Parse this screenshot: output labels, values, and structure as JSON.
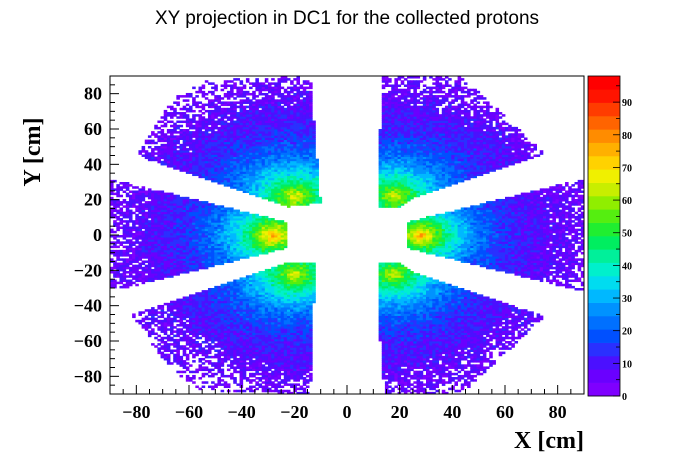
{
  "chart_data": {
    "type": "heatmap",
    "title": "XY projection in DC1 for the collected protons",
    "xlabel": "X [cm]",
    "ylabel": "Y [cm]",
    "xlim": [
      -90,
      90
    ],
    "ylim": [
      -90,
      90
    ],
    "x_ticks": [
      -80,
      -60,
      -40,
      -20,
      0,
      20,
      40,
      60,
      80
    ],
    "y_ticks": [
      -80,
      -60,
      -40,
      -20,
      0,
      20,
      40,
      60,
      80
    ],
    "zlim": [
      0,
      98
    ],
    "z_ticks": [
      0,
      10,
      20,
      30,
      40,
      50,
      60,
      70,
      80,
      90
    ],
    "palette": [
      "#7f00ff",
      "#6a00ff",
      "#4b10ff",
      "#2a30ff",
      "#0050ff",
      "#0070ff",
      "#0092ff",
      "#00b8ff",
      "#00dcf0",
      "#00f0cc",
      "#00f09a",
      "#00ee60",
      "#20ee30",
      "#55ee10",
      "#90ee00",
      "#c8ee00",
      "#f0f000",
      "#ffd200",
      "#ffb000",
      "#ff8c00",
      "#ff6400",
      "#ff3c00",
      "#ff1400",
      "#ff0000"
    ],
    "sectors": [
      {
        "name": "right",
        "x_range": [
          23,
          90
        ],
        "y_half_width_at": [
          [
            23,
            7.5
          ],
          [
            90,
            32
          ]
        ],
        "peak": [
          28,
          0
        ],
        "peak_value": 72
      },
      {
        "name": "left",
        "x_range": [
          -90,
          -23
        ],
        "y_half_width_at": [
          [
            -23,
            7.5
          ],
          [
            -90,
            32
          ]
        ],
        "peak": [
          -28,
          0
        ],
        "peak_value": 75
      },
      {
        "name": "upper-right",
        "peak": [
          18,
          22
        ],
        "peak_value": 62
      },
      {
        "name": "upper-left",
        "peak": [
          -20,
          22
        ],
        "peak_value": 64
      },
      {
        "name": "lower-right",
        "peak": [
          18,
          -22
        ],
        "peak_value": 60
      },
      {
        "name": "lower-left",
        "peak": [
          -20,
          -22
        ],
        "peak_value": 62
      }
    ],
    "grid": false,
    "colorbar": "right"
  }
}
